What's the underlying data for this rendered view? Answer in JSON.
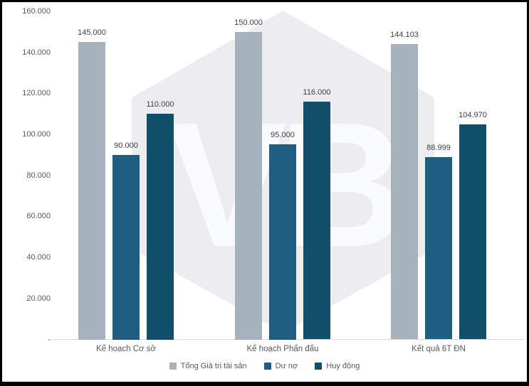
{
  "chart_data": {
    "type": "bar",
    "categories": [
      "Kế hoạch Cơ sở",
      "Kế hoạch Phấn đấu",
      "Kết quả 6T ĐN"
    ],
    "series": [
      {
        "name": "Tổng Giá trị tài sản",
        "color": "#a6b2bd",
        "values": [
          145000,
          150000,
          144103
        ],
        "labels": [
          "145.000",
          "150.000",
          "144.103"
        ]
      },
      {
        "name": "Dư nợ",
        "color": "#1d5e81",
        "values": [
          90000,
          95000,
          88999
        ],
        "labels": [
          "90.000",
          "95.000",
          "88.999"
        ]
      },
      {
        "name": "Huy động",
        "color": "#124f6a",
        "values": [
          110000,
          116000,
          104970
        ],
        "labels": [
          "110.000",
          "116.000",
          "104.970"
        ]
      }
    ],
    "title": "",
    "xlabel": "",
    "ylabel": "",
    "ylim": [
      0,
      160000
    ],
    "y_tick_labels": [
      "160.000",
      "140.000",
      "120.000",
      "100.000",
      "80.000",
      "60.000",
      "40.000",
      "20.000",
      "-"
    ],
    "y_tick_values": [
      160000,
      140000,
      120000,
      100000,
      80000,
      60000,
      40000,
      20000,
      0
    ],
    "grid": false,
    "legend_position": "bottom"
  },
  "watermark": {
    "text": "VB"
  },
  "colors": {
    "frame_border": "#000000",
    "axis_line": "#d9d9d9",
    "axis_text": "#595959",
    "data_label_text": "#404040",
    "watermark_hex": "#ededf0",
    "watermark_text": "#fafbfc",
    "background": "#ffffff"
  }
}
